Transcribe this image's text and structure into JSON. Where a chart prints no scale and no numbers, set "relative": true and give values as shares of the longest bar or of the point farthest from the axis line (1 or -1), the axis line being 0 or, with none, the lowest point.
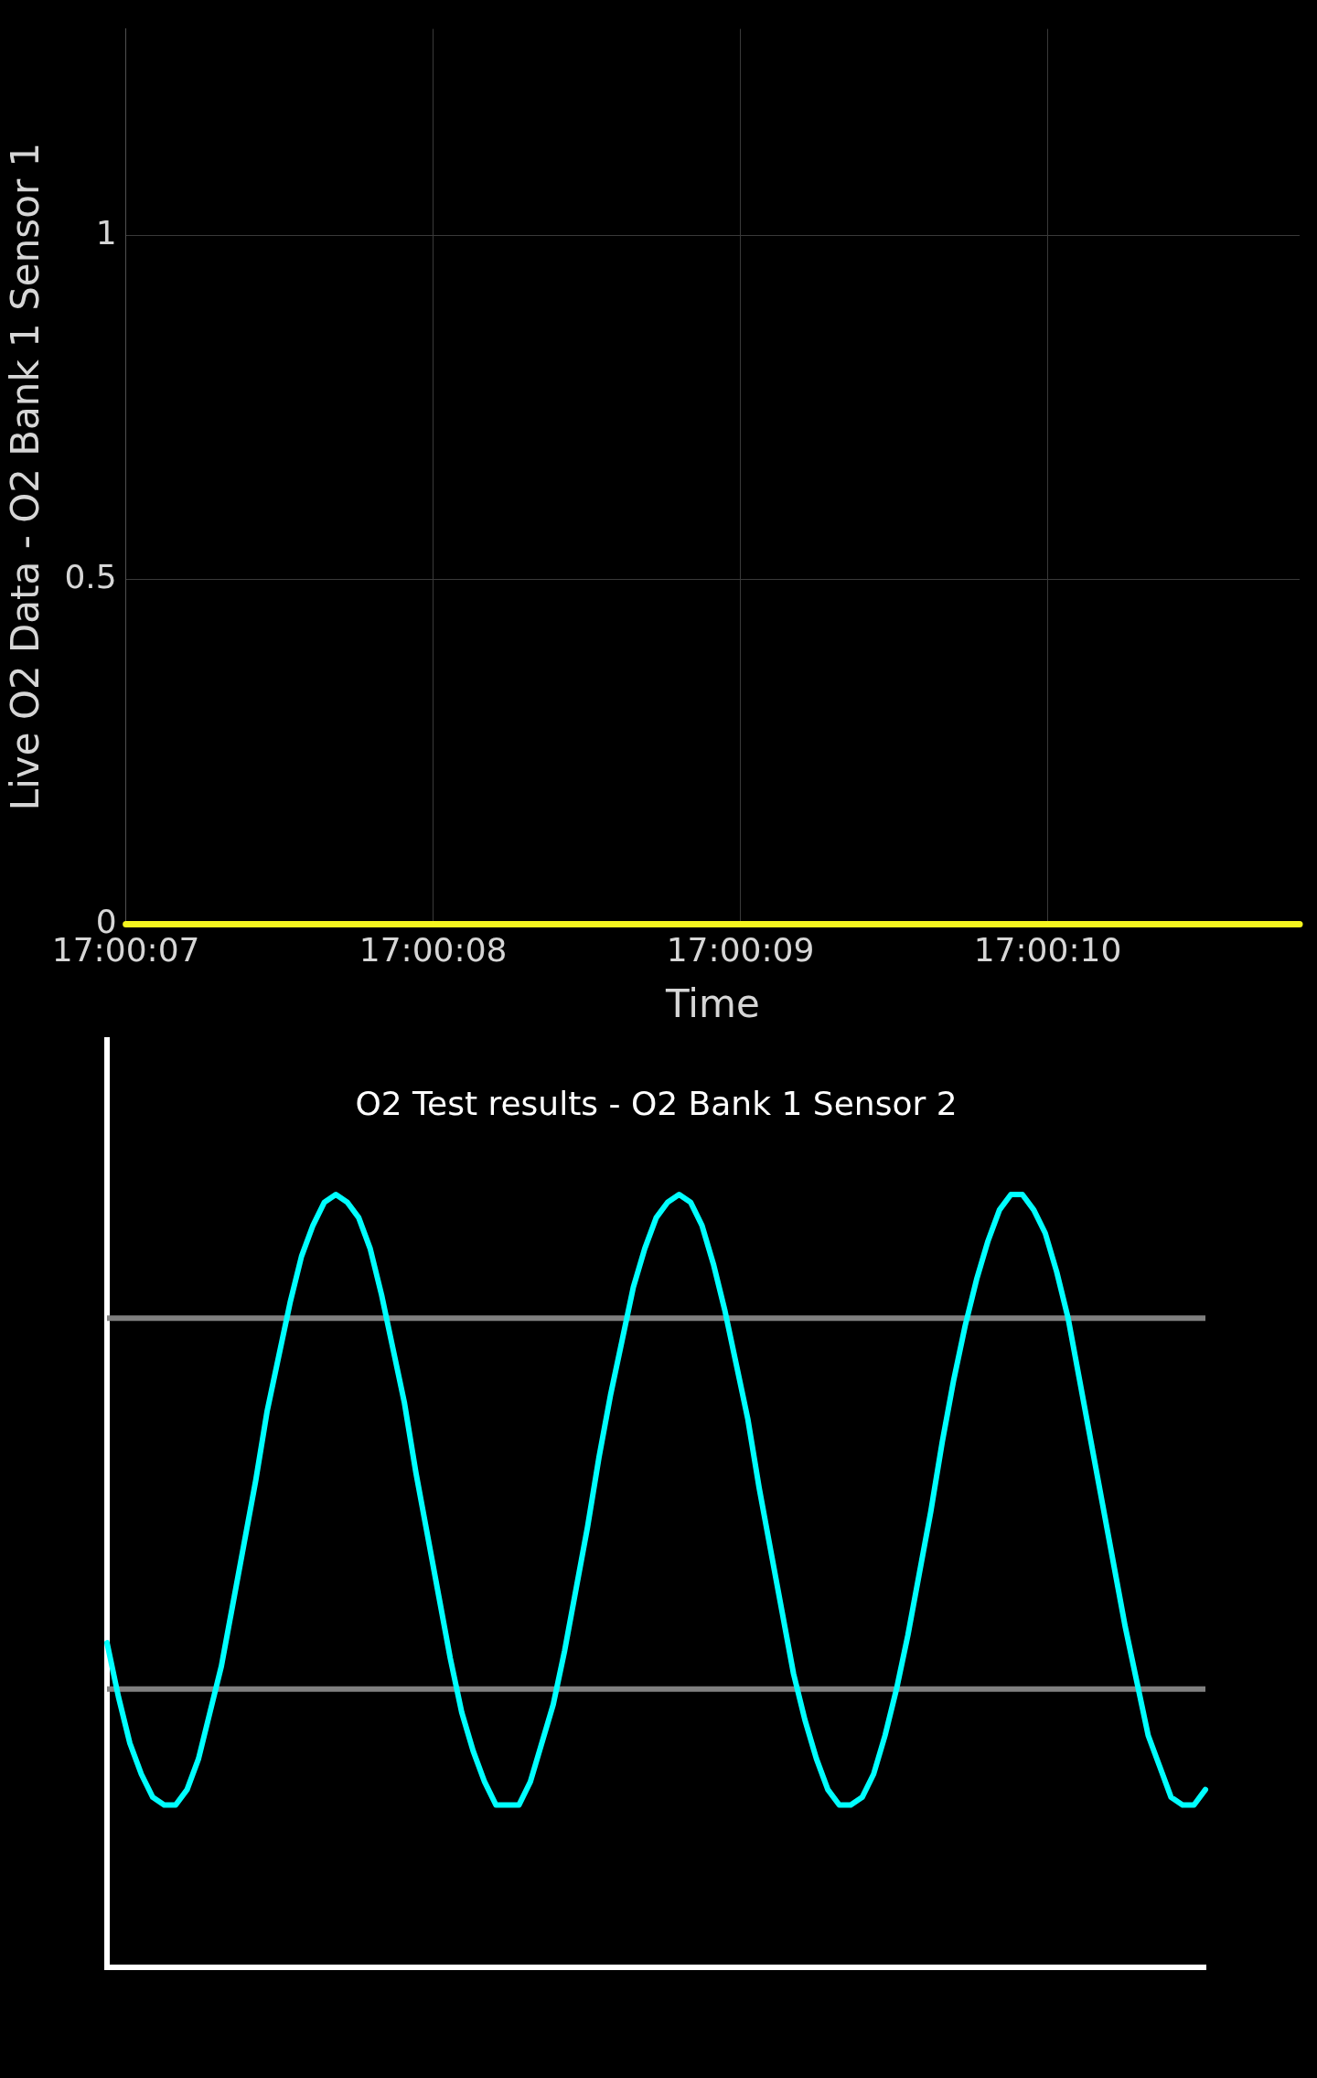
{
  "chart_data": [
    {
      "type": "line",
      "xlabel": "Time",
      "ylabel": "Live O2 Data - O2 Bank 1 Sensor 1",
      "x": [
        17.001944,
        17.003006
      ],
      "series": [
        {
          "color": "#f5f51e",
          "values": [
            0,
            0
          ]
        }
      ],
      "xlim": [
        17.001944,
        17.003006
      ],
      "xticks": [
        {
          "value": 17.001944,
          "label": "17:00:07"
        },
        {
          "value": 17.002222,
          "label": "17:00:08"
        },
        {
          "value": 17.0025,
          "label": "17:00:09"
        },
        {
          "value": 17.002778,
          "label": "17:00:10"
        }
      ],
      "ylim": [
        0,
        1.3
      ],
      "yticks": [
        0,
        0.5,
        1
      ],
      "grid": true
    },
    {
      "type": "line",
      "title": "O2 Test results - O2 Bank 1 Sensor 2",
      "categories": [
        null,
        null,
        null,
        null,
        null,
        null,
        null,
        null,
        null,
        null,
        null,
        null,
        null,
        null,
        null,
        null,
        null,
        null,
        null,
        null,
        null,
        null,
        null,
        null,
        null,
        null,
        null,
        null,
        null,
        null,
        null,
        null,
        null,
        null,
        null,
        null,
        null,
        null,
        null,
        null,
        null,
        null,
        null,
        null,
        null,
        null,
        null,
        null,
        null,
        null,
        null,
        null,
        null,
        null,
        null,
        null,
        null,
        null,
        null,
        null,
        null,
        null,
        null,
        null,
        null,
        null,
        null,
        null,
        null,
        null,
        null,
        null,
        null,
        null,
        null,
        null,
        null,
        null,
        null,
        null,
        null,
        null,
        null,
        null,
        null,
        null,
        null,
        null,
        null,
        null,
        null,
        null,
        null,
        null,
        null,
        null,
        null
      ],
      "relative": true,
      "series": [
        {
          "color": "#00ffff",
          "values": [
            0.42,
            0.35,
            0.29,
            0.25,
            0.22,
            0.21,
            0.21,
            0.23,
            0.27,
            0.33,
            0.39,
            0.47,
            0.55,
            0.63,
            0.72,
            0.79,
            0.86,
            0.92,
            0.96,
            0.99,
            1.0,
            0.99,
            0.97,
            0.93,
            0.87,
            0.8,
            0.73,
            0.64,
            0.56,
            0.48,
            0.4,
            0.33,
            0.28,
            0.24,
            0.21,
            0.21,
            0.21,
            0.24,
            0.29,
            0.34,
            0.41,
            0.49,
            0.57,
            0.66,
            0.74,
            0.81,
            0.88,
            0.93,
            0.97,
            0.99,
            1.0,
            0.99,
            0.96,
            0.91,
            0.85,
            0.78,
            0.71,
            0.62,
            0.54,
            0.46,
            0.38,
            0.32,
            0.27,
            0.23,
            0.21,
            0.21,
            0.22,
            0.25,
            0.3,
            0.36,
            0.43,
            0.51,
            0.59,
            0.68,
            0.76,
            0.83,
            0.89,
            0.94,
            0.98,
            1.0,
            1.0,
            0.98,
            0.95,
            0.9,
            0.84,
            0.76,
            0.68,
            0.6,
            0.52,
            0.44,
            0.37,
            0.3,
            0.26,
            0.22,
            0.21,
            0.21,
            0.23
          ]
        }
      ],
      "ref_lines": [
        {
          "axis": "y",
          "value": 0.84,
          "color": "#808080"
        },
        {
          "axis": "y",
          "value": 0.36,
          "color": "#808080"
        }
      ],
      "tick_labels": false
    }
  ]
}
